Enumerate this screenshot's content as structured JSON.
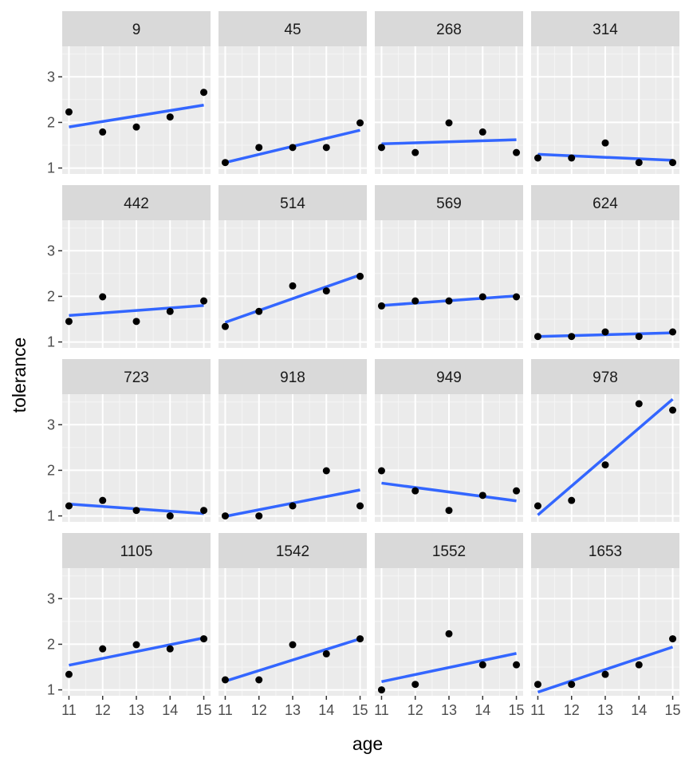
{
  "chart_data": {
    "type": "scatter",
    "layout": "facet_wrap 4x4",
    "xlabel": "age",
    "ylabel": "tolerance",
    "x_ticks": [
      11,
      12,
      13,
      14,
      15
    ],
    "y_ticks": [
      1,
      2,
      3
    ],
    "xlim": [
      10.8,
      15.2
    ],
    "ylim": [
      0.87,
      3.67
    ],
    "grid": true,
    "legend": "none",
    "colors": {
      "panel_bg": "#ebebeb",
      "strip_bg": "#d9d9d9",
      "grid_major": "#ffffff",
      "grid_minor": "#f5f5f5",
      "point": "#000000",
      "fit_line": "#3366ff",
      "tick": "#333333"
    },
    "facets": [
      {
        "label": "9",
        "y": [
          2.23,
          1.79,
          1.9,
          2.12,
          2.66
        ],
        "fit": [
          1.9,
          2.38
        ]
      },
      {
        "label": "45",
        "y": [
          1.12,
          1.45,
          1.45,
          1.45,
          1.99
        ],
        "fit": [
          1.12,
          1.83
        ]
      },
      {
        "label": "268",
        "y": [
          1.45,
          1.34,
          1.99,
          1.79,
          1.34
        ],
        "fit": [
          1.53,
          1.62
        ]
      },
      {
        "label": "314",
        "y": [
          1.22,
          1.22,
          1.55,
          1.12,
          1.12
        ],
        "fit": [
          1.3,
          1.17
        ]
      },
      {
        "label": "442",
        "y": [
          1.45,
          1.99,
          1.45,
          1.67,
          1.9
        ],
        "fit": [
          1.58,
          1.8
        ]
      },
      {
        "label": "514",
        "y": [
          1.34,
          1.67,
          2.23,
          2.12,
          2.44
        ],
        "fit": [
          1.43,
          2.47
        ]
      },
      {
        "label": "569",
        "y": [
          1.79,
          1.9,
          1.9,
          1.99,
          1.99
        ],
        "fit": [
          1.8,
          2.01
        ]
      },
      {
        "label": "624",
        "y": [
          1.12,
          1.12,
          1.22,
          1.12,
          1.22
        ],
        "fit": [
          1.12,
          1.2
        ]
      },
      {
        "label": "723",
        "y": [
          1.22,
          1.34,
          1.12,
          1.0,
          1.12
        ],
        "fit": [
          1.26,
          1.05
        ]
      },
      {
        "label": "918",
        "y": [
          1.0,
          1.0,
          1.22,
          1.99,
          1.22
        ],
        "fit": [
          0.99,
          1.57
        ]
      },
      {
        "label": "949",
        "y": [
          1.99,
          1.55,
          1.12,
          1.45,
          1.55
        ],
        "fit": [
          1.72,
          1.33
        ]
      },
      {
        "label": "978",
        "y": [
          1.22,
          1.34,
          2.12,
          3.46,
          3.32
        ],
        "fit": [
          1.02,
          3.56
        ]
      },
      {
        "label": "1105",
        "y": [
          1.34,
          1.9,
          1.99,
          1.9,
          2.12
        ],
        "fit": [
          1.54,
          2.14
        ]
      },
      {
        "label": "1542",
        "y": [
          1.22,
          1.22,
          1.99,
          1.79,
          2.12
        ],
        "fit": [
          1.19,
          2.12
        ]
      },
      {
        "label": "1552",
        "y": [
          1.0,
          1.12,
          2.23,
          1.55,
          1.55
        ],
        "fit": [
          1.18,
          1.8
        ]
      },
      {
        "label": "1653",
        "y": [
          1.12,
          1.12,
          1.34,
          1.55,
          2.12
        ],
        "fit": [
          0.95,
          1.94
        ]
      }
    ]
  }
}
